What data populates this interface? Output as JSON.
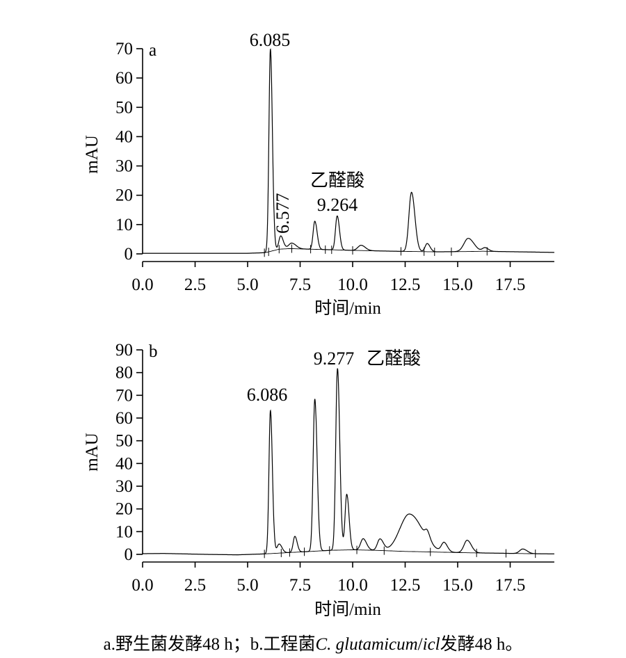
{
  "chart_data": [
    {
      "type": "line",
      "panel_label": "a",
      "xlabel": "时间/min",
      "ylabel": "mAU",
      "xlim": [
        0,
        19.6
      ],
      "ylim": [
        0,
        70
      ],
      "xticks": [
        "0.0",
        "2.5",
        "5.0",
        "7.5",
        "10.0",
        "12.5",
        "15.0",
        "17.5"
      ],
      "yticks": [
        "0",
        "10",
        "20",
        "30",
        "40",
        "50",
        "60",
        "70"
      ],
      "baseline": [
        [
          0,
          0.2
        ],
        [
          5.0,
          0.2
        ],
        [
          5.8,
          0.4
        ],
        [
          6.0,
          0.7
        ],
        [
          6.5,
          1.6
        ],
        [
          7.0,
          1.8
        ],
        [
          8.5,
          1.5
        ],
        [
          10.0,
          1.2
        ],
        [
          12.0,
          0.9
        ],
        [
          14.0,
          0.7
        ],
        [
          15.5,
          0.8
        ],
        [
          16.2,
          0.9
        ],
        [
          19.6,
          0.5
        ]
      ],
      "peaks": [
        {
          "rt": 6.085,
          "height": 69.0,
          "width": 0.07,
          "label": "6.085"
        },
        {
          "rt": 6.577,
          "height": 4.5,
          "width": 0.09,
          "label": "6.577",
          "label_rotated": true
        },
        {
          "rt": 7.1,
          "height": 1.9,
          "width": 0.15
        },
        {
          "rt": 8.2,
          "height": 9.6,
          "width": 0.08
        },
        {
          "rt": 9.264,
          "height": 11.6,
          "width": 0.08,
          "label": "9.264",
          "compound": "乙醛酸"
        },
        {
          "rt": 10.4,
          "height": 1.8,
          "width": 0.15
        },
        {
          "rt": 12.8,
          "height": 20.2,
          "width": 0.12
        },
        {
          "rt": 13.55,
          "height": 2.8,
          "width": 0.1
        },
        {
          "rt": 15.5,
          "height": 4.5,
          "width": 0.2
        },
        {
          "rt": 16.3,
          "height": 1.2,
          "width": 0.12
        }
      ],
      "integration_marks": [
        5.8,
        6.0,
        6.5,
        7.1,
        8.0,
        8.7,
        9.0,
        10.0,
        12.3,
        13.4,
        13.9,
        14.7,
        16.4
      ]
    },
    {
      "type": "line",
      "panel_label": "b",
      "xlabel": "时间/min",
      "ylabel": "mAU",
      "xlim": [
        0,
        19.6
      ],
      "ylim": [
        0,
        90
      ],
      "xticks": [
        "0.0",
        "2.5",
        "5.0",
        "7.5",
        "10.0",
        "12.5",
        "15.0",
        "17.5"
      ],
      "yticks": [
        "0",
        "10",
        "20",
        "30",
        "40",
        "50",
        "60",
        "70",
        "80",
        "90"
      ],
      "baseline": [
        [
          0,
          0.3
        ],
        [
          1.0,
          0.4
        ],
        [
          3.0,
          0.0
        ],
        [
          4.5,
          -0.2
        ],
        [
          5.8,
          0.2
        ],
        [
          7.0,
          0.8
        ],
        [
          9.0,
          1.8
        ],
        [
          10.0,
          2.0
        ],
        [
          11.0,
          1.8
        ],
        [
          12.5,
          1.3
        ],
        [
          14.0,
          1.0
        ],
        [
          15.5,
          0.7
        ],
        [
          17.0,
          0.5
        ],
        [
          18.5,
          0.3
        ],
        [
          19.6,
          0.2
        ]
      ],
      "peaks": [
        {
          "rt": 6.086,
          "height": 63.0,
          "width": 0.07,
          "label": "6.086"
        },
        {
          "rt": 6.5,
          "height": 4.0,
          "width": 0.1
        },
        {
          "rt": 7.25,
          "height": 7.0,
          "width": 0.08
        },
        {
          "rt": 8.2,
          "height": 67.0,
          "width": 0.08
        },
        {
          "rt": 9.277,
          "height": 80.0,
          "width": 0.08,
          "label": "9.277",
          "compound": "乙醛酸"
        },
        {
          "rt": 9.72,
          "height": 24.5,
          "width": 0.08
        },
        {
          "rt": 10.5,
          "height": 5.0,
          "width": 0.12
        },
        {
          "rt": 11.3,
          "height": 5.0,
          "width": 0.12
        },
        {
          "rt": 12.7,
          "height": 16.5,
          "width": 0.45
        },
        {
          "rt": 13.55,
          "height": 3.5,
          "width": 0.1
        },
        {
          "rt": 14.35,
          "height": 4.0,
          "width": 0.12
        },
        {
          "rt": 15.45,
          "height": 5.5,
          "width": 0.15
        },
        {
          "rt": 18.1,
          "height": 2.0,
          "width": 0.15
        }
      ],
      "integration_marks": [
        5.8,
        6.6,
        7.0,
        7.7,
        8.9,
        10.2,
        11.5,
        13.7,
        15.9,
        17.3,
        18.7
      ]
    }
  ],
  "caption": {
    "part1": "a.野生菌发酵48 h；b.工程菌",
    "organism": "C. glutamicum",
    "part2": "/",
    "gene": "icl",
    "part3": "发酵48 h。"
  }
}
